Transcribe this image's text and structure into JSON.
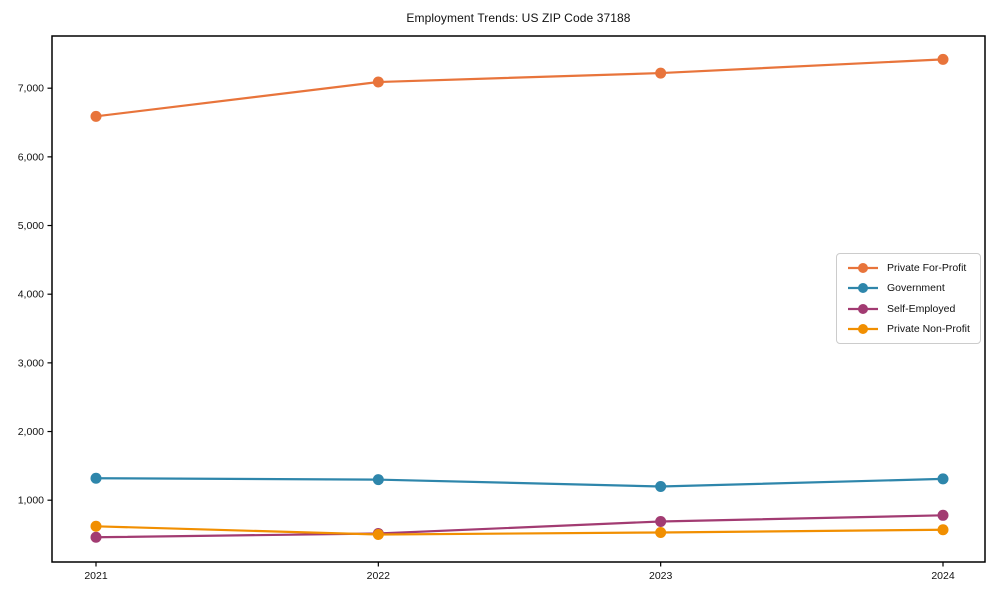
{
  "figure": {
    "background_color": "#ffffff",
    "axis_color": "#000000",
    "tick_label_color": "#111111"
  },
  "chart_data": {
    "type": "line",
    "title": "Employment Trends: US ZIP Code 37188",
    "categories": [
      "2021",
      "2022",
      "2023",
      "2024"
    ],
    "series": [
      {
        "name": "Private For-Profit",
        "color": "#E8743B",
        "values": [
          6590,
          7090,
          7220,
          7420
        ]
      },
      {
        "name": "Government",
        "color": "#2E86AB",
        "values": [
          1320,
          1300,
          1200,
          1310
        ]
      },
      {
        "name": "Self-Employed",
        "color": "#A23B72",
        "values": [
          460,
          515,
          690,
          780
        ]
      },
      {
        "name": "Private Non-Profit",
        "color": "#F18F01",
        "values": [
          620,
          500,
          530,
          570
        ]
      }
    ],
    "xlabel": "",
    "ylabel": "",
    "yticks": [
      1000,
      2000,
      3000,
      4000,
      5000,
      6000,
      7000
    ],
    "ylim": [
      100,
      7760
    ],
    "grid": false,
    "legend_position": "center-right",
    "marker": "circle"
  }
}
